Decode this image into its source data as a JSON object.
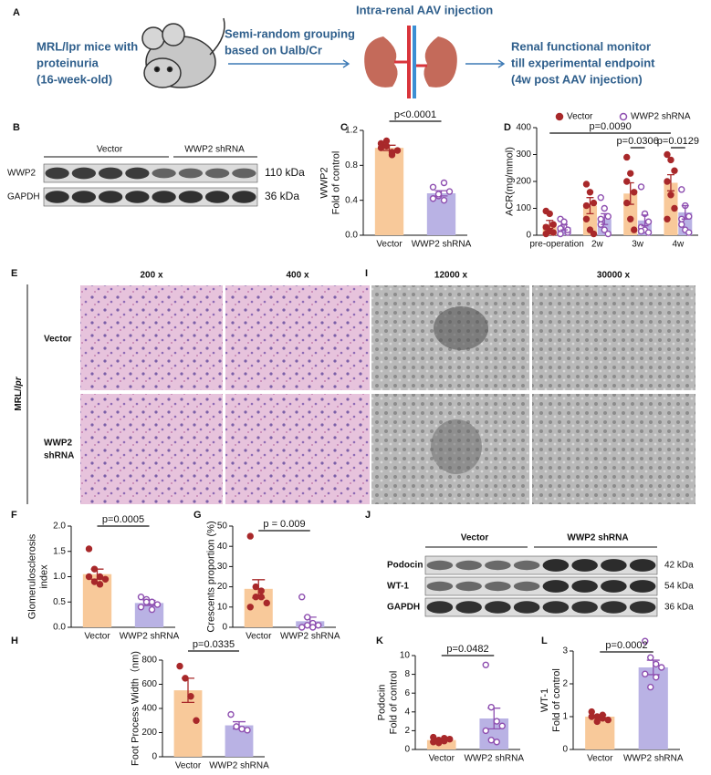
{
  "schematic": {
    "label": "A",
    "mice": [
      "MRL/lpr mice with",
      "proteinuria",
      "(16-week-old)"
    ],
    "grouping": [
      "Semi-random grouping",
      "based on Ualb/Cr"
    ],
    "injection": "Intra-renal AAV injection",
    "monitor": [
      "Renal functional monitor",
      "till experimental endpoint",
      "(4w post AAV injection)"
    ]
  },
  "blot_b": {
    "label": "B",
    "groups": [
      "Vector",
      "WWP2 shRNA"
    ],
    "rows": [
      "WWP2",
      "GAPDH"
    ],
    "sizes": [
      "110 kDa",
      "36 kDa"
    ]
  },
  "histology": {
    "label": "E",
    "mags": [
      "200 x",
      "400 x"
    ],
    "rows": [
      "Vector",
      [
        "WWP2",
        "shRNA"
      ]
    ],
    "strain": "MRL/",
    "strain_italic": "lpr"
  },
  "em": {
    "label": "I",
    "mags": [
      "12000 x",
      "30000 x"
    ]
  },
  "blot_j": {
    "label": "J",
    "groups": [
      "Vector",
      "WWP2 shRNA"
    ],
    "rows": [
      "Podocin",
      "WT-1",
      "GAPDH"
    ],
    "sizes": [
      "42 kDa",
      "54 kDa",
      "36 kDa"
    ]
  },
  "chart_data": [
    {
      "type": "bar",
      "label": "C",
      "ylabel": [
        "WWP2",
        "Fold of control"
      ],
      "categories": [
        "Vector",
        "WWP2 shRNA"
      ],
      "values": [
        1.0,
        0.48
      ],
      "errors": [
        0.03,
        0.03
      ],
      "points": [
        [
          1.05,
          1.08,
          0.95,
          0.97,
          1.0,
          1.02,
          0.92
        ],
        [
          0.55,
          0.45,
          0.4,
          0.5,
          0.42,
          0.47,
          0.6
        ]
      ],
      "colors": [
        "#f8c99a",
        "#b9b2e4"
      ],
      "marker_colors": [
        "#a8282a",
        "#8e4fb0"
      ],
      "marker_styles": [
        "filled",
        "open"
      ],
      "ylim": [
        0,
        1.2
      ],
      "yticks": [
        {
          "value": 0,
          "label": "0.0"
        },
        0.4,
        0.8,
        1.2
      ],
      "annotation": "p<0.0001"
    },
    {
      "type": "bar",
      "label": "D",
      "ylabel": [
        "ACR(mg/mmol)"
      ],
      "categories": [
        "pre-operation",
        "2w",
        "3w",
        "4w"
      ],
      "series": [
        {
          "name": "Vector",
          "color": "#a8282a",
          "fill": "#f8c99a",
          "marker_style": "filled",
          "values": [
            40,
            110,
            155,
            195
          ],
          "errors": [
            15,
            30,
            40,
            30
          ],
          "points": [
            [
              5,
              15,
              40,
              90,
              80,
              10,
              30
            ],
            [
              190,
              160,
              120,
              60,
              20,
              5,
              110
            ],
            [
              290,
              230,
              160,
              120,
              60,
              20,
              200
            ],
            [
              300,
              280,
              240,
              200,
              150,
              100,
              60
            ]
          ]
        },
        {
          "name": "WWP2 shRNA",
          "color": "#8e4fb0",
          "fill": "#b9b2e4",
          "marker_style": "open",
          "values": [
            30,
            60,
            55,
            85
          ],
          "errors": [
            10,
            20,
            20,
            25
          ],
          "points": [
            [
              60,
              30,
              10,
              5,
              50,
              20,
              25
            ],
            [
              140,
              100,
              70,
              40,
              20,
              5,
              60
            ],
            [
              180,
              80,
              50,
              30,
              20,
              10,
              15
            ],
            [
              170,
              110,
              70,
              40,
              20,
              10,
              60
            ]
          ]
        }
      ],
      "ylim": [
        0,
        400
      ],
      "yticks": [
        0,
        100,
        200,
        300,
        400
      ],
      "annotations": [
        "p=0.0090",
        "p=0.0306",
        "p=0.0129"
      ]
    },
    {
      "type": "bar",
      "label": "F",
      "ylabel": [
        "Glomerulosclerosis",
        "index"
      ],
      "categories": [
        "Vector",
        "WWP2 shRNA"
      ],
      "values": [
        1.05,
        0.48
      ],
      "errors": [
        0.1,
        0.05
      ],
      "points": [
        [
          1.55,
          1.15,
          1.0,
          0.95,
          1.0,
          0.9,
          0.85
        ],
        [
          0.6,
          0.55,
          0.5,
          0.45,
          0.4,
          0.5,
          0.35
        ]
      ],
      "colors": [
        "#f8c99a",
        "#b9b2e4"
      ],
      "marker_colors": [
        "#a8282a",
        "#8e4fb0"
      ],
      "marker_styles": [
        "filled",
        "open"
      ],
      "ylim": [
        0,
        2
      ],
      "yticks": [
        {
          "value": 0,
          "label": "0.0"
        },
        0.5,
        {
          "value": 1,
          "label": "1.0"
        },
        1.5,
        {
          "value": 2,
          "label": "2.0"
        }
      ],
      "annotation": "p=0.0005"
    },
    {
      "type": "bar",
      "label": "G",
      "ylabel": [
        "Crescents proportion (%)"
      ],
      "categories": [
        "Vector",
        "WWP2 shRNA"
      ],
      "values": [
        19,
        3
      ],
      "errors": [
        4.5,
        2
      ],
      "points": [
        [
          45,
          20,
          15,
          12,
          10,
          15,
          18
        ],
        [
          15,
          5,
          2,
          1,
          0,
          1,
          0
        ]
      ],
      "colors": [
        "#f8c99a",
        "#b9b2e4"
      ],
      "marker_colors": [
        "#a8282a",
        "#8e4fb0"
      ],
      "marker_styles": [
        "filled",
        "open"
      ],
      "ylim": [
        0,
        50
      ],
      "yticks": [
        0,
        10,
        20,
        30,
        40,
        50
      ],
      "annotation": "p = 0.009"
    },
    {
      "type": "bar",
      "label": "H",
      "ylabel": [
        "Foot Process Width（nm)"
      ],
      "categories": [
        "Vector",
        "WWP2 shRNA"
      ],
      "values": [
        550,
        260
      ],
      "errors": [
        100,
        30
      ],
      "points": [
        [
          750,
          650,
          500,
          300
        ],
        [
          350,
          250,
          230,
          220
        ]
      ],
      "colors": [
        "#f8c99a",
        "#b9b2e4"
      ],
      "marker_colors": [
        "#a8282a",
        "#8e4fb0"
      ],
      "marker_styles": [
        "filled",
        "open"
      ],
      "ylim": [
        0,
        800
      ],
      "yticks": [
        0,
        200,
        400,
        600,
        800
      ],
      "annotation": "p=0.0335"
    },
    {
      "type": "bar",
      "label": "K",
      "ylabel": [
        "Podocin",
        "Fold of control"
      ],
      "categories": [
        "Vector",
        "WWP2 shRNA"
      ],
      "values": [
        1.0,
        3.3
      ],
      "errors": [
        0.1,
        1.1
      ],
      "points": [
        [
          1.3,
          1.0,
          0.9,
          1.1,
          0.8,
          0.7,
          1.2
        ],
        [
          9.0,
          4.5,
          3.0,
          2.5,
          2.0,
          1.0,
          0.8
        ]
      ],
      "colors": [
        "#f8c99a",
        "#b9b2e4"
      ],
      "marker_colors": [
        "#a8282a",
        "#8e4fb0"
      ],
      "marker_styles": [
        "filled",
        "open"
      ],
      "ylim": [
        0,
        10
      ],
      "yticks": [
        0,
        2,
        4,
        6,
        8,
        10
      ],
      "annotation": "p=0.0482"
    },
    {
      "type": "bar",
      "label": "L",
      "ylabel": [
        "WT-1",
        "Fold of control"
      ],
      "categories": [
        "Vector",
        "WWP2 shRNA"
      ],
      "values": [
        1.0,
        2.5
      ],
      "errors": [
        0.05,
        0.22
      ],
      "points": [
        [
          1.15,
          1.0,
          0.95,
          0.9,
          1.0,
          0.85,
          1.05
        ],
        [
          3.3,
          2.8,
          2.6,
          2.5,
          2.3,
          1.9,
          2.2
        ]
      ],
      "colors": [
        "#f8c99a",
        "#b9b2e4"
      ],
      "marker_colors": [
        "#a8282a",
        "#8e4fb0"
      ],
      "marker_styles": [
        "filled",
        "open"
      ],
      "ylim": [
        0,
        3
      ],
      "yticks": [
        0,
        1,
        2,
        3
      ],
      "annotation": "p=0.0002"
    }
  ]
}
